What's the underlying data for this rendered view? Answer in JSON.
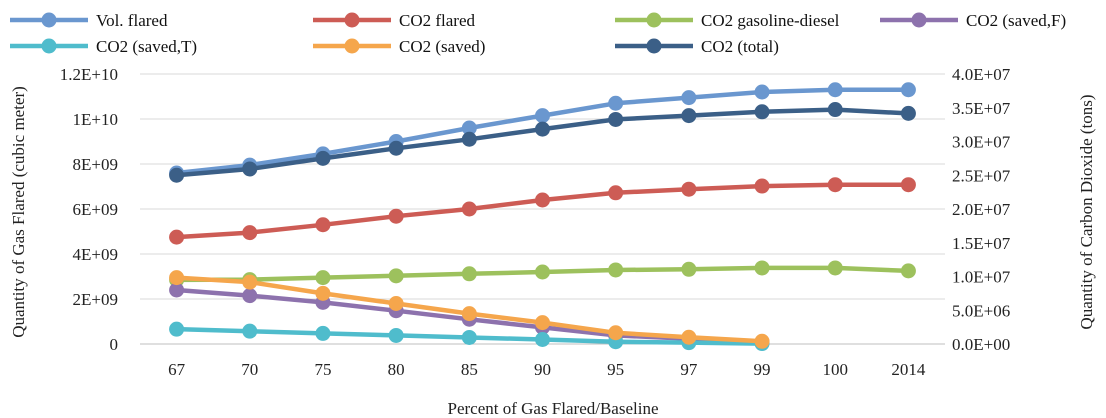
{
  "chart_data": {
    "type": "line",
    "categories": [
      "67",
      "70",
      "75",
      "80",
      "85",
      "90",
      "95",
      "97",
      "99",
      "100",
      "2014"
    ],
    "xlabel": "Percent of Gas Flared/Baseline",
    "ylabel": "Quantity of Gas Flared (cubic meter)",
    "y2label": "Quantity of Carbon Dioxide (tons)",
    "ylim": [
      0,
      12000000000
    ],
    "y2lim": [
      0,
      40000000
    ],
    "y_ticks": [
      "0",
      "2E+09",
      "4E+09",
      "6E+09",
      "8E+09",
      "1E+10",
      "1.2E+10"
    ],
    "y2_ticks": [
      "0.0E+00",
      "5.0E+06",
      "1.0E+07",
      "1.5E+07",
      "2.0E+07",
      "2.5E+07",
      "3.0E+07",
      "3.5E+07",
      "4.0E+07"
    ],
    "grid": true,
    "legend_position": "top",
    "series": [
      {
        "name": "Vol. flared",
        "axis": "left",
        "color": "#6a97cf",
        "values": [
          7600000000,
          7950000000,
          8450000000,
          9000000000,
          9600000000,
          10150000000,
          10700000000,
          10950000000,
          11200000000,
          11300000000,
          11300000000
        ]
      },
      {
        "name": "CO2 flared",
        "axis": "left",
        "color": "#cd5c55",
        "values": [
          4750000000,
          4950000000,
          5300000000,
          5680000000,
          6000000000,
          6400000000,
          6720000000,
          6880000000,
          7020000000,
          7080000000,
          7080000000
        ]
      },
      {
        "name": "CO2 gasoline-diesel",
        "axis": "left",
        "color": "#9dc15d",
        "values": [
          2850000000,
          2860000000,
          2950000000,
          3030000000,
          3120000000,
          3200000000,
          3290000000,
          3320000000,
          3380000000,
          3380000000,
          3250000000
        ]
      },
      {
        "name": "CO2 (saved,F)",
        "axis": "left",
        "color": "#8d72ad",
        "values": [
          2400000000,
          2150000000,
          1850000000,
          1480000000,
          1100000000,
          740000000,
          380000000,
          230000000,
          80000000,
          null,
          null
        ]
      },
      {
        "name": "CO2 (saved,T)",
        "axis": "left",
        "color": "#4fbccc",
        "values": [
          660000000,
          570000000,
          470000000,
          380000000,
          290000000,
          200000000,
          100000000,
          60000000,
          20000000,
          null,
          null
        ]
      },
      {
        "name": "CO2 (saved)",
        "axis": "left",
        "color": "#f5a64c",
        "values": [
          2950000000,
          2750000000,
          2250000000,
          1800000000,
          1350000000,
          950000000,
          500000000,
          300000000,
          120000000,
          null,
          null
        ]
      },
      {
        "name": "CO2 (total)",
        "axis": "left",
        "color": "#3b5f87",
        "values": [
          7500000000,
          7780000000,
          8250000000,
          8700000000,
          9100000000,
          9550000000,
          9980000000,
          10150000000,
          10320000000,
          10420000000,
          10250000000
        ]
      }
    ]
  }
}
